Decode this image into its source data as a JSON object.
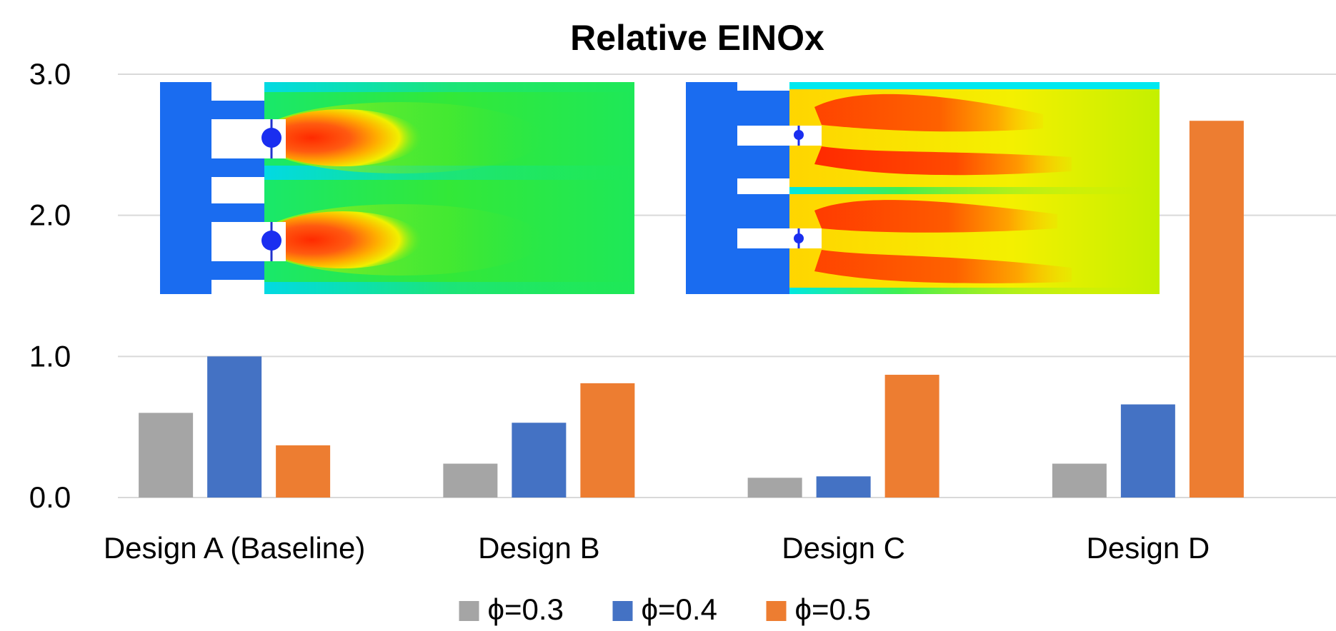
{
  "chart_data": {
    "type": "bar",
    "title": "Relative EINOx",
    "xlabel": "",
    "ylabel": "",
    "categories": [
      "Design A (Baseline)",
      "Design B",
      "Design C",
      "Design D"
    ],
    "series": [
      {
        "name": "ϕ=0.3",
        "color": "#a5a5a5",
        "values": [
          0.6,
          0.24,
          0.14,
          0.24
        ]
      },
      {
        "name": "ϕ=0.4",
        "color": "#4472c4",
        "values": [
          1.0,
          0.53,
          0.15,
          0.66
        ]
      },
      {
        "name": "ϕ=0.5",
        "color": "#ed7d31",
        "values": [
          0.37,
          0.81,
          0.87,
          2.67
        ]
      }
    ],
    "ylim": [
      0,
      3.0
    ],
    "yticks": [
      "0.0",
      "1.0",
      "2.0",
      "3.0"
    ],
    "grid": true,
    "legend_position": "bottom",
    "insets": [
      {
        "name": "contour-plot-left",
        "after_category": "Design A (Baseline)"
      },
      {
        "name": "contour-plot-right",
        "after_category": "Design C"
      }
    ]
  }
}
